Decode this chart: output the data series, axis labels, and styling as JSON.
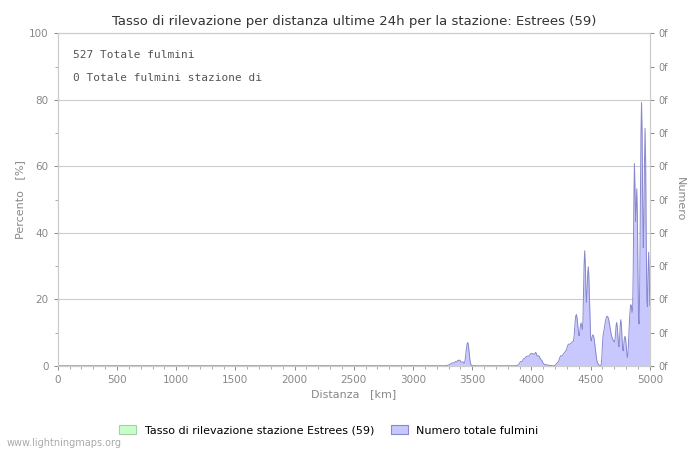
{
  "title": "Tasso di rilevazione per distanza ultime 24h per la stazione: Estrees (59)",
  "xlabel": "Distanza   [km]",
  "ylabel_left": "Percento   [%]",
  "ylabel_right": "Numero",
  "annotation_line1": "527 Totale fulmini",
  "annotation_line2": "0 Totale fulmini stazione di",
  "watermark": "www.lightningmaps.org",
  "xlim": [
    0,
    5000
  ],
  "ylim_left": [
    0,
    100
  ],
  "xticks": [
    0,
    500,
    1000,
    1500,
    2000,
    2500,
    3000,
    3500,
    4000,
    4500,
    5000
  ],
  "yticks_left": [
    0,
    20,
    40,
    60,
    80,
    100
  ],
  "yticks_minor_left": [
    10,
    30,
    50,
    70,
    90
  ],
  "right_ytick_positions": [
    0,
    10,
    20,
    30,
    40,
    50,
    60,
    70,
    80,
    90,
    100
  ],
  "legend_label_green": "Tasso di rilevazione stazione Estrees (59)",
  "legend_label_blue": "Numero totale fulmini",
  "fill_color_blue": "#c8c8ff",
  "line_color_blue": "#8888cc",
  "fill_color_green": "#c8ffc8",
  "line_color_green": "#88cc88",
  "background_color": "#ffffff",
  "grid_color": "#cccccc",
  "text_color": "#888888",
  "title_color": "#333333"
}
